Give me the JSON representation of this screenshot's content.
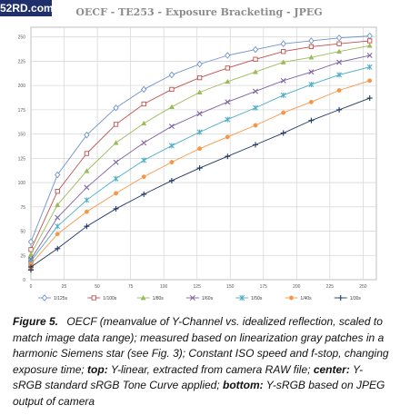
{
  "watermark": "52RD.com",
  "chart_data": {
    "type": "line",
    "title": "OECF - TE253 - Exposure Bracketing - JPEG",
    "xlabel": "",
    "ylabel": "",
    "xlim": [
      0,
      260
    ],
    "ylim": [
      0,
      260
    ],
    "x_ticks": [
      "0",
      "25",
      "50",
      "75",
      "100",
      "125",
      "150",
      "175",
      "200",
      "225",
      "250"
    ],
    "y_ticks": [
      "0",
      "25",
      "50",
      "75",
      "100",
      "125",
      "150",
      "175",
      "200",
      "225",
      "250"
    ],
    "grid": true,
    "legend_position": "bottom",
    "x": [
      0,
      0,
      20,
      42,
      64,
      85,
      106,
      127,
      148,
      169,
      190,
      211,
      232,
      255
    ],
    "series": [
      {
        "name": "1/125s",
        "color": "#6f93cf",
        "marker": "diamond",
        "values": [
          22,
          39,
          108,
          149,
          177,
          196,
          211,
          222,
          231,
          237,
          243,
          246,
          249,
          251
        ]
      },
      {
        "name": "1/100s",
        "color": "#c0504d",
        "marker": "square",
        "values": [
          18,
          31,
          91,
          130,
          160,
          181,
          196,
          208,
          218,
          227,
          235,
          240,
          243,
          246
        ]
      },
      {
        "name": "1/80s",
        "color": "#9bbb59",
        "marker": "triangle",
        "values": [
          15,
          26,
          77,
          112,
          141,
          161,
          178,
          193,
          204,
          214,
          224,
          229,
          235,
          241
        ]
      },
      {
        "name": "1/60s",
        "color": "#8064a2",
        "marker": "x",
        "values": [
          13,
          21,
          64,
          95,
          121,
          141,
          158,
          171,
          183,
          194,
          205,
          214,
          224,
          231
        ]
      },
      {
        "name": "1/50s",
        "color": "#4bacc6",
        "marker": "star",
        "values": [
          12,
          19,
          55,
          82,
          104,
          123,
          138,
          152,
          165,
          177,
          190,
          201,
          211,
          219
        ]
      },
      {
        "name": "1/40s",
        "color": "#f79646",
        "marker": "circle",
        "values": [
          11,
          16,
          47,
          70,
          89,
          106,
          121,
          135,
          147,
          159,
          172,
          183,
          195,
          205
        ]
      },
      {
        "name": "1/30s",
        "color": "#1f3864",
        "marker": "plus",
        "values": [
          10,
          13,
          32,
          55,
          73,
          88,
          102,
          115,
          127,
          139,
          151,
          164,
          175,
          187
        ]
      }
    ]
  },
  "caption": {
    "label": "Figure 5.",
    "text": "OECF (meanvalue of Y-Channel vs. idealized reflection, scaled to match image data range); measured based on linearization gray patches in a harmonic Siemens star (see Fig. 3); Constant ISO speed and f-stop, changing exposure time;",
    "top_label": "top:",
    "top_text": "Y-linear, extracted from camera RAW file;",
    "center_label": "center:",
    "center_text": "Y-sRGB standard sRGB Tone Curve applied;",
    "bottom_label": "bottom:",
    "bottom_text": "Y-sRGB based on JPEG output of camera"
  }
}
